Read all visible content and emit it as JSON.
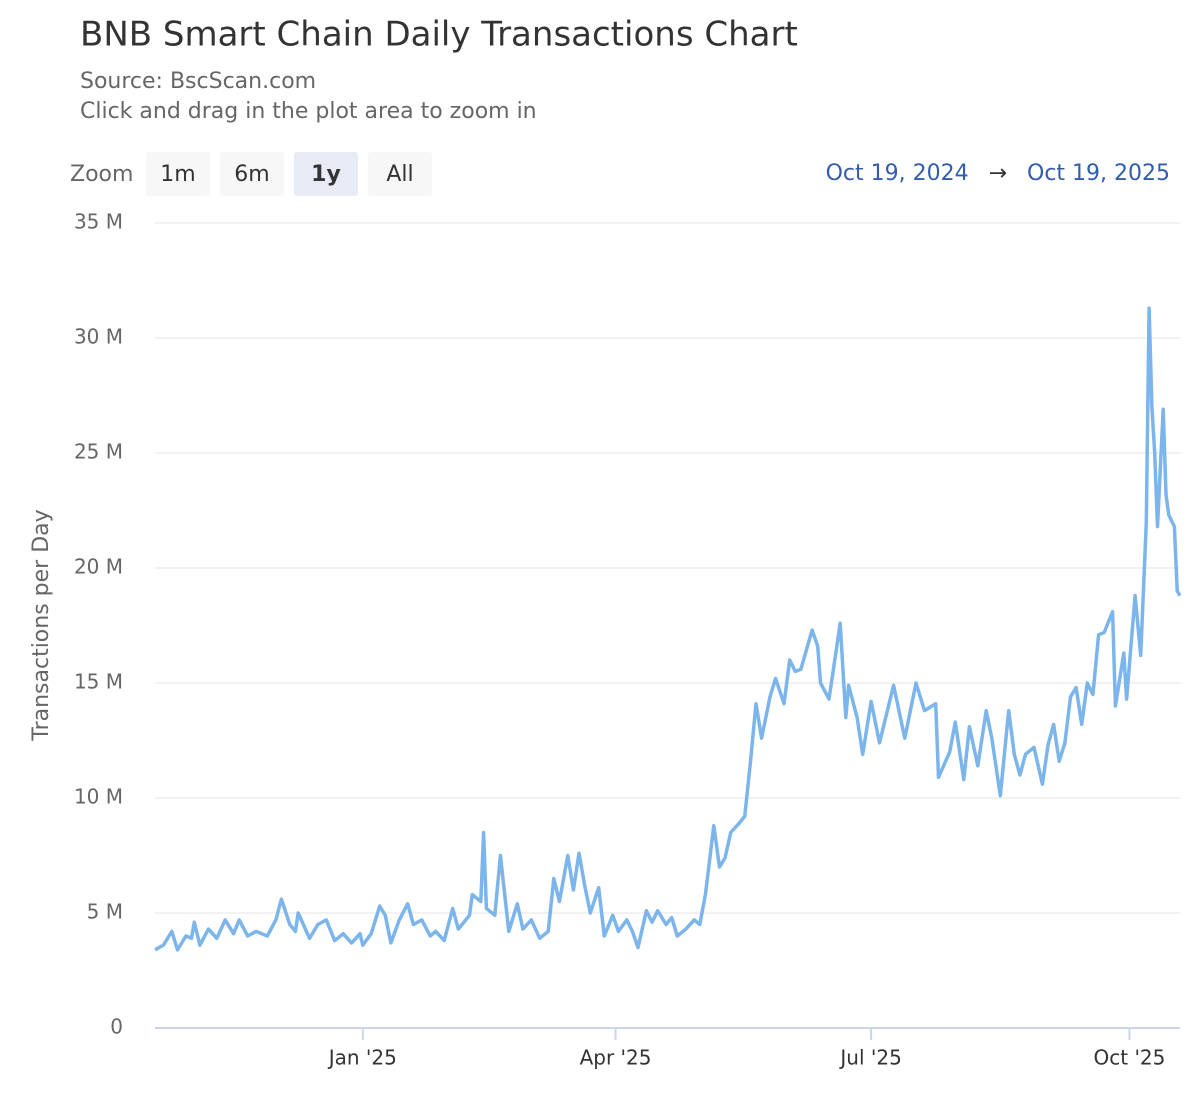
{
  "chart_data": {
    "type": "line",
    "title": "BNB Smart Chain Daily Transactions Chart",
    "source": "Source: BscScan.com",
    "subtitle": "Click and drag in the plot area to zoom in",
    "range_selector": {
      "label": "Zoom",
      "buttons": [
        "1m",
        "6m",
        "1y",
        "All"
      ],
      "selected": 2
    },
    "date_range": {
      "from": "Oct 19, 2024",
      "separator": "→",
      "to": "Oct 19, 2025"
    },
    "y_label": "Transactions per Day",
    "color": "#7cb5ec",
    "grid": true,
    "xlim": [
      "2024-10-19",
      "2025-10-19"
    ],
    "xticks": [
      {
        "value": "2025-01-01",
        "label": "Jan '25"
      },
      {
        "value": "2025-04-01",
        "label": "Apr '25"
      },
      {
        "value": "2025-07-01",
        "label": "Jul '25"
      },
      {
        "value": "2025-10-01",
        "label": "Oct '25"
      }
    ],
    "ylim": [
      0,
      35000000
    ],
    "yticks": [
      0,
      {
        "value": 5000000,
        "label": "5 M"
      },
      {
        "value": 10000000,
        "label": "10 M"
      },
      {
        "value": 15000000,
        "label": "15 M"
      },
      {
        "value": 20000000,
        "label": "20 M"
      },
      {
        "value": 25000000,
        "label": "25 M"
      },
      {
        "value": 30000000,
        "label": "30 M"
      },
      {
        "value": 35000000,
        "label": "35 M"
      }
    ],
    "x": [
      "2024-10-19",
      "2024-10-22",
      "2024-10-25",
      "2024-10-27",
      "2024-10-30",
      "2024-11-01",
      "2024-11-02",
      "2024-11-04",
      "2024-11-07",
      "2024-11-10",
      "2024-11-13",
      "2024-11-16",
      "2024-11-18",
      "2024-11-21",
      "2024-11-24",
      "2024-11-28",
      "2024-12-01",
      "2024-12-03",
      "2024-12-06",
      "2024-12-08",
      "2024-12-09",
      "2024-12-13",
      "2024-12-16",
      "2024-12-19",
      "2024-12-22",
      "2024-12-25",
      "2024-12-28",
      "2024-12-31",
      "2025-01-01",
      "2025-01-04",
      "2025-01-07",
      "2025-01-09",
      "2025-01-11",
      "2025-01-14",
      "2025-01-17",
      "2025-01-19",
      "2025-01-22",
      "2025-01-25",
      "2025-01-27",
      "2025-01-30",
      "2025-02-02",
      "2025-02-04",
      "2025-02-08",
      "2025-02-09",
      "2025-02-12",
      "2025-02-13",
      "2025-02-14",
      "2025-02-17",
      "2025-02-19",
      "2025-02-22",
      "2025-02-25",
      "2025-02-27",
      "2025-03-02",
      "2025-03-05",
      "2025-03-08",
      "2025-03-10",
      "2025-03-12",
      "2025-03-15",
      "2025-03-17",
      "2025-03-19",
      "2025-03-21",
      "2025-03-23",
      "2025-03-26",
      "2025-03-28",
      "2025-03-31",
      "2025-04-02",
      "2025-04-05",
      "2025-04-07",
      "2025-04-09",
      "2025-04-12",
      "2025-04-14",
      "2025-04-16",
      "2025-04-19",
      "2025-04-21",
      "2025-04-23",
      "2025-04-26",
      "2025-04-29",
      "2025-05-01",
      "2025-05-03",
      "2025-05-06",
      "2025-05-08",
      "2025-05-10",
      "2025-05-12",
      "2025-05-15",
      "2025-05-17",
      "2025-05-19",
      "2025-05-21",
      "2025-05-23",
      "2025-05-26",
      "2025-05-28",
      "2025-05-31",
      "2025-06-02",
      "2025-06-04",
      "2025-06-06",
      "2025-06-10",
      "2025-06-12",
      "2025-06-13",
      "2025-06-16",
      "2025-06-20",
      "2025-06-22",
      "2025-06-23",
      "2025-06-26",
      "2025-06-28",
      "2025-07-01",
      "2025-07-04",
      "2025-07-09",
      "2025-07-13",
      "2025-07-17",
      "2025-07-20",
      "2025-07-24",
      "2025-07-25",
      "2025-07-29",
      "2025-07-31",
      "2025-08-03",
      "2025-08-05",
      "2025-08-08",
      "2025-08-11",
      "2025-08-13",
      "2025-08-16",
      "2025-08-19",
      "2025-08-21",
      "2025-08-23",
      "2025-08-25",
      "2025-08-28",
      "2025-08-31",
      "2025-09-02",
      "2025-09-04",
      "2025-09-06",
      "2025-09-08",
      "2025-09-10",
      "2025-09-12",
      "2025-09-14",
      "2025-09-16",
      "2025-09-18",
      "2025-09-20",
      "2025-09-22",
      "2025-09-25",
      "2025-09-26",
      "2025-09-29",
      "2025-09-30",
      "2025-10-03",
      "2025-10-05",
      "2025-10-07",
      "2025-10-08",
      "2025-10-09",
      "2025-10-10",
      "2025-10-11",
      "2025-10-13",
      "2025-10-14",
      "2025-10-15",
      "2025-10-17",
      "2025-10-18",
      "2025-10-19"
    ],
    "values": [
      3400000,
      3600000,
      4200000,
      3400000,
      4000000,
      3900000,
      4600000,
      3600000,
      4300000,
      3900000,
      4700000,
      4100000,
      4700000,
      4000000,
      4200000,
      4000000,
      4700000,
      5600000,
      4500000,
      4200000,
      5000000,
      3900000,
      4500000,
      4700000,
      3800000,
      4100000,
      3700000,
      4100000,
      3600000,
      4100000,
      5300000,
      4900000,
      3700000,
      4700000,
      5400000,
      4500000,
      4700000,
      4000000,
      4200000,
      3800000,
      5200000,
      4300000,
      4900000,
      5800000,
      5500000,
      8500000,
      5200000,
      4900000,
      7500000,
      4200000,
      5400000,
      4300000,
      4700000,
      3900000,
      4200000,
      6500000,
      5500000,
      7500000,
      6000000,
      7600000,
      6200000,
      5000000,
      6100000,
      4000000,
      4900000,
      4200000,
      4700000,
      4200000,
      3500000,
      5100000,
      4600000,
      5100000,
      4500000,
      4800000,
      4000000,
      4300000,
      4700000,
      4500000,
      5800000,
      8800000,
      7000000,
      7400000,
      8500000,
      8900000,
      9200000,
      11500000,
      14100000,
      12600000,
      14400000,
      15200000,
      14100000,
      16000000,
      15500000,
      15600000,
      17300000,
      16600000,
      15000000,
      14300000,
      17600000,
      13500000,
      14900000,
      13500000,
      11900000,
      14200000,
      12400000,
      14900000,
      12600000,
      15000000,
      13800000,
      14100000,
      10900000,
      12000000,
      13300000,
      10800000,
      13100000,
      11400000,
      13800000,
      12600000,
      10100000,
      13800000,
      11900000,
      11000000,
      11900000,
      12200000,
      10600000,
      12300000,
      13200000,
      11600000,
      12400000,
      14400000,
      14800000,
      13200000,
      15000000,
      14500000,
      17100000,
      17200000,
      18100000,
      14000000,
      16300000,
      14300000,
      18800000,
      16200000,
      22000000,
      31300000,
      27000000,
      25000000,
      21800000,
      26900000,
      23200000,
      22300000,
      21800000,
      19000000,
      18800000
    ]
  }
}
